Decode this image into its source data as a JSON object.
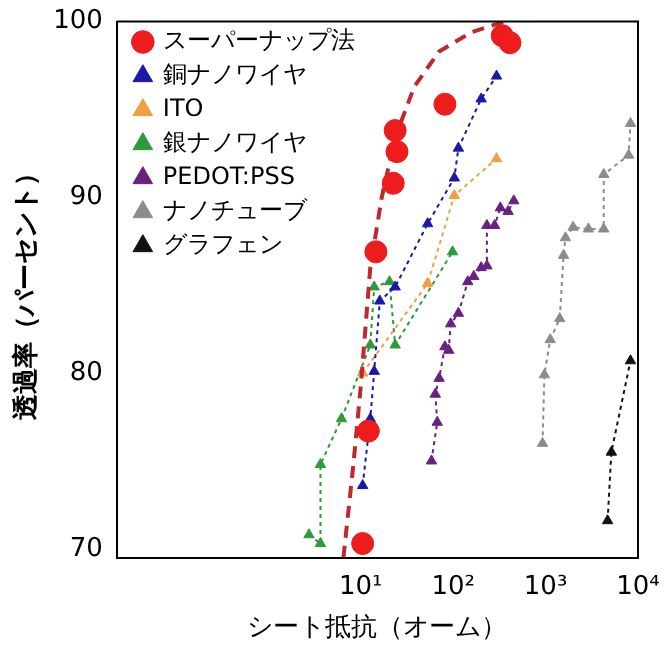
{
  "chart_data": {
    "type": "scatter",
    "xlabel": "シート抵抗（オーム）",
    "ylabel": "透過率（パーセント）",
    "log": "x",
    "grid": false,
    "legend": "top left",
    "xlim": [
      0.023,
      10000
    ],
    "xticks": [
      {
        "value": 10,
        "label": "10¹"
      },
      {
        "value": 100,
        "label": "10²"
      },
      {
        "value": 1000,
        "label": "10³"
      },
      {
        "value": 10000,
        "label": "10⁴"
      }
    ],
    "ylim": [
      69.5,
      100
    ],
    "yticks": [
      70,
      80,
      90,
      100
    ],
    "series": [
      {
        "name": "スーパーナップ法",
        "type": "scatter",
        "marker": "circle",
        "color": "#ee1c1c",
        "x": [
          10.5,
          12.1,
          14.6,
          22.5,
          23.6,
          24.7,
          81.5,
          340,
          412
        ],
        "values": [
          70.3,
          76.7,
          86.9,
          90.8,
          93.8,
          92.6,
          95.3,
          99.2,
          98.8
        ]
      },
      {
        "type": "line",
        "marker": "none",
        "line_style": "dashed",
        "color": "#c0282d",
        "x": [
          6.5,
          8.3,
          10,
          12.7,
          16.9,
          23.6,
          38,
          70.6,
          158,
          357
        ],
        "values": [
          69.5,
          74.7,
          79.2,
          86.0,
          90.0,
          93.4,
          96.3,
          98.3,
          99.4,
          100
        ]
      },
      {
        "name": "銅ナノワイヤ",
        "type": "line",
        "marker": "triangle",
        "line_style": "dotted",
        "color": "#1a1aa8",
        "x": [
          10.5,
          12.7,
          14.0,
          16.1,
          23.6,
          53,
          103,
          114,
          201,
          295
        ],
        "values": [
          73.6,
          77.4,
          80.1,
          84.1,
          84.9,
          88.5,
          91.1,
          92.8,
          95.6,
          96.9
        ]
      },
      {
        "name": "ITO",
        "type": "line",
        "marker": "triangle",
        "line_style": "dotted",
        "color": "#f0a040",
        "x": [
          10.5,
          53,
          103,
          295
        ],
        "values": [
          80.0,
          85.1,
          90.1,
          92.2
        ]
      },
      {
        "name": "銀ナノワイヤ",
        "type": "line",
        "marker": "triangle",
        "line_style": "dotted",
        "color": "#2e9a3a",
        "x": [
          2.76,
          3.67,
          3.67,
          6.2,
          12.7,
          14.0,
          20.5,
          23.6,
          98.6
        ],
        "values": [
          70.8,
          70.3,
          74.8,
          77.4,
          81.6,
          84.9,
          85.2,
          81.6,
          86.9
        ]
      },
      {
        "name": "PEDOT:PSS",
        "type": "line",
        "marker": "triangle",
        "line_style": "dotted",
        "color": "#6a2080",
        "x": [
          58.3,
          67.3,
          64.1,
          70.6,
          81.5,
          89.6,
          94.0,
          114,
          144,
          167,
          201,
          232,
          232,
          281,
          324,
          393,
          453
        ],
        "values": [
          75.0,
          77.2,
          78.8,
          79.7,
          81.5,
          81.3,
          82.8,
          83.4,
          85.2,
          85.5,
          86.0,
          86.1,
          88.4,
          88.4,
          89.4,
          89.2,
          89.8
        ]
      },
      {
        "name": "ナノチューブ",
        "type": "line",
        "marker": "triangle",
        "line_style": "dotted",
        "color": "#8c8c8c",
        "x": [
          927,
          972,
          1122,
          1423,
          1566,
          1642,
          1986,
          2909,
          4258,
          4258,
          7920,
          8300
        ],
        "values": [
          76.0,
          79.9,
          81.9,
          83.1,
          86.7,
          87.7,
          88.3,
          88.2,
          88.2,
          91.3,
          92.4,
          94.2
        ]
      },
      {
        "name": "グラフェン",
        "type": "line",
        "marker": "triangle",
        "line_style": "dotted",
        "color": "#111111",
        "x": [
          4690,
          5150,
          8300
        ],
        "values": [
          71.6,
          75.5,
          80.7
        ]
      }
    ]
  }
}
